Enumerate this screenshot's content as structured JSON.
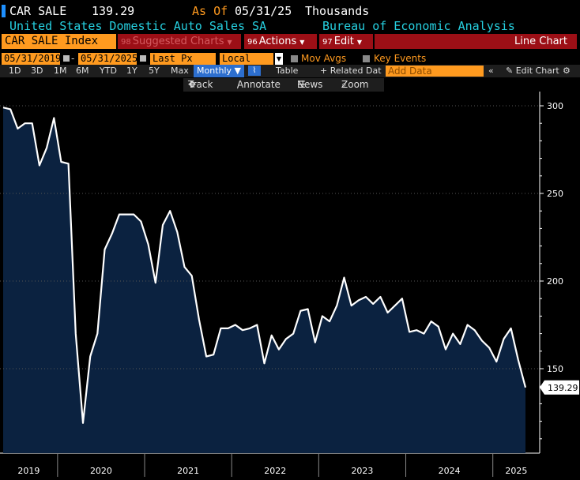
{
  "header": {
    "ticker": "CAR SALE",
    "price": "139.29",
    "as_of_label": "As Of",
    "as_of_date": "05/31/25",
    "units": "Thousands",
    "description": "United States Domestic Auto Sales SA",
    "source": "Bureau of Economic Analysis"
  },
  "toolbar": {
    "index_name": "CAR SALE Index",
    "suggested_num": "98",
    "suggested_label": "Suggested Charts",
    "actions_num": "96",
    "actions_label": "Actions",
    "edit_num": "97",
    "edit_label": "Edit",
    "chart_type": "Line Chart"
  },
  "controls": {
    "start_date": "05/31/2019",
    "end_date": "05/31/2025",
    "field": "Last Px",
    "currency": "Local CCY",
    "mov_avgs": "Mov Avgs",
    "key_events": "Key Events"
  },
  "periods": [
    "1D",
    "3D",
    "1M",
    "6M",
    "YTD",
    "1Y",
    "5Y",
    "Max"
  ],
  "frequency": "Monthly",
  "table_label": "Table",
  "related_label": "Related Dat",
  "add_data_placeholder": "Add Data",
  "edit_chart_label": "Edit Chart",
  "tools": {
    "track": "Track",
    "annotate": "Annotate",
    "news": "News",
    "zoom": "Zoom"
  },
  "colors": {
    "accent_orange": "#ff9a1f",
    "accent_red": "#9c0f16",
    "cyan_text": "#26d0e0",
    "chart_fill": "#0b2240",
    "line": "#ffffff"
  },
  "chart_data": {
    "type": "area",
    "title": "",
    "xlabel": "",
    "ylabel": "",
    "ylim": [
      100,
      305
    ],
    "yticks": [
      150,
      200,
      250,
      300
    ],
    "year_labels": [
      "2019",
      "2020",
      "2021",
      "2022",
      "2023",
      "2024",
      "2025"
    ],
    "last_value_label": "139.29",
    "x": [
      "2019-05",
      "2019-06",
      "2019-07",
      "2019-08",
      "2019-09",
      "2019-10",
      "2019-11",
      "2019-12",
      "2020-01",
      "2020-02",
      "2020-03",
      "2020-04",
      "2020-05",
      "2020-06",
      "2020-07",
      "2020-08",
      "2020-09",
      "2020-10",
      "2020-11",
      "2020-12",
      "2021-01",
      "2021-02",
      "2021-03",
      "2021-04",
      "2021-05",
      "2021-06",
      "2021-07",
      "2021-08",
      "2021-09",
      "2021-10",
      "2021-11",
      "2021-12",
      "2022-01",
      "2022-02",
      "2022-03",
      "2022-04",
      "2022-05",
      "2022-06",
      "2022-07",
      "2022-08",
      "2022-09",
      "2022-10",
      "2022-11",
      "2022-12",
      "2023-01",
      "2023-02",
      "2023-03",
      "2023-04",
      "2023-05",
      "2023-06",
      "2023-07",
      "2023-08",
      "2023-09",
      "2023-10",
      "2023-11",
      "2023-12",
      "2024-01",
      "2024-02",
      "2024-03",
      "2024-04",
      "2024-05",
      "2024-06",
      "2024-07",
      "2024-08",
      "2024-09",
      "2024-10",
      "2024-11",
      "2024-12",
      "2025-01",
      "2025-02",
      "2025-03",
      "2025-04",
      "2025-05"
    ],
    "series": [
      {
        "values": [
          299,
          298,
          287,
          290,
          290,
          266,
          276,
          293,
          268,
          267,
          170,
          119,
          157,
          170,
          218,
          227,
          238,
          238,
          238,
          234,
          221,
          199,
          232,
          240,
          228,
          208,
          203,
          178,
          157,
          158,
          173,
          173,
          175,
          172,
          173,
          175,
          153,
          169,
          161,
          167,
          170,
          183,
          184,
          165,
          180,
          177,
          186,
          202,
          186,
          189,
          191,
          187,
          191,
          182,
          186,
          190,
          171,
          172,
          170,
          177,
          174,
          161,
          170,
          164,
          175,
          172,
          166,
          162,
          154,
          167,
          173,
          155,
          139.29
        ]
      }
    ]
  }
}
